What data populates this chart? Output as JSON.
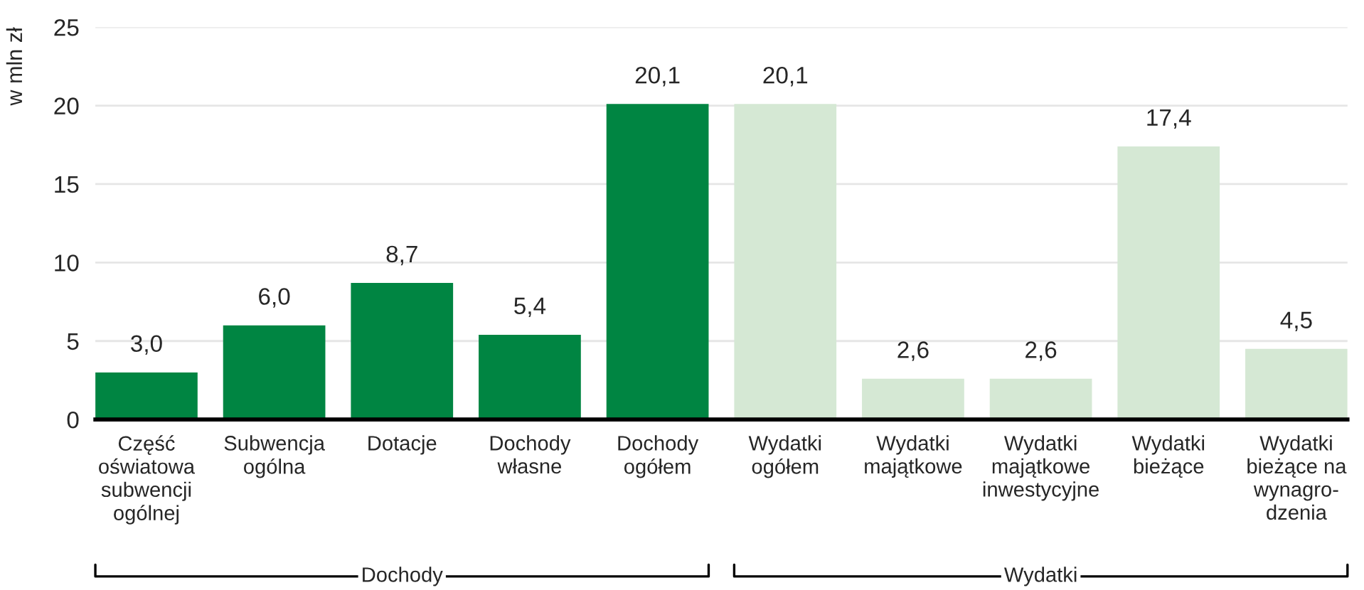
{
  "chart_data": {
    "type": "bar",
    "ylabel": "w mln zł",
    "categories": [
      "Część\noświatowa\nsubwencji\nogólnej",
      "Subwencja\nogólna",
      "Dotacje",
      "Dochody\nwłasne",
      "Dochody\nogółem",
      "Wydatki\nogółem",
      "Wydatki\nmajątkowe",
      "Wydatki\nmajątkowe\ninwestycyjne",
      "Wydatki\nbieżące",
      "Wydatki\nbieżące na\nwynagro-\ndzenia"
    ],
    "values": [
      3.0,
      6.0,
      8.7,
      5.4,
      20.1,
      20.1,
      2.6,
      2.6,
      17.4,
      4.5
    ],
    "colors": [
      "#008542",
      "#008542",
      "#008542",
      "#008542",
      "#008542",
      "#d5e8d4",
      "#d5e8d4",
      "#d5e8d4",
      "#d5e8d4",
      "#d5e8d4"
    ],
    "value_labels": [
      "3,0",
      "6,0",
      "8,7",
      "5,4",
      "20,1",
      "20,1",
      "2,6",
      "2,6",
      "17,4",
      "4,5"
    ],
    "ylim": [
      0,
      25
    ],
    "yticks": [
      0,
      5,
      10,
      15,
      20,
      25
    ],
    "grid": "y",
    "annotations": [
      "Dochody",
      "Wydatki"
    ]
  }
}
